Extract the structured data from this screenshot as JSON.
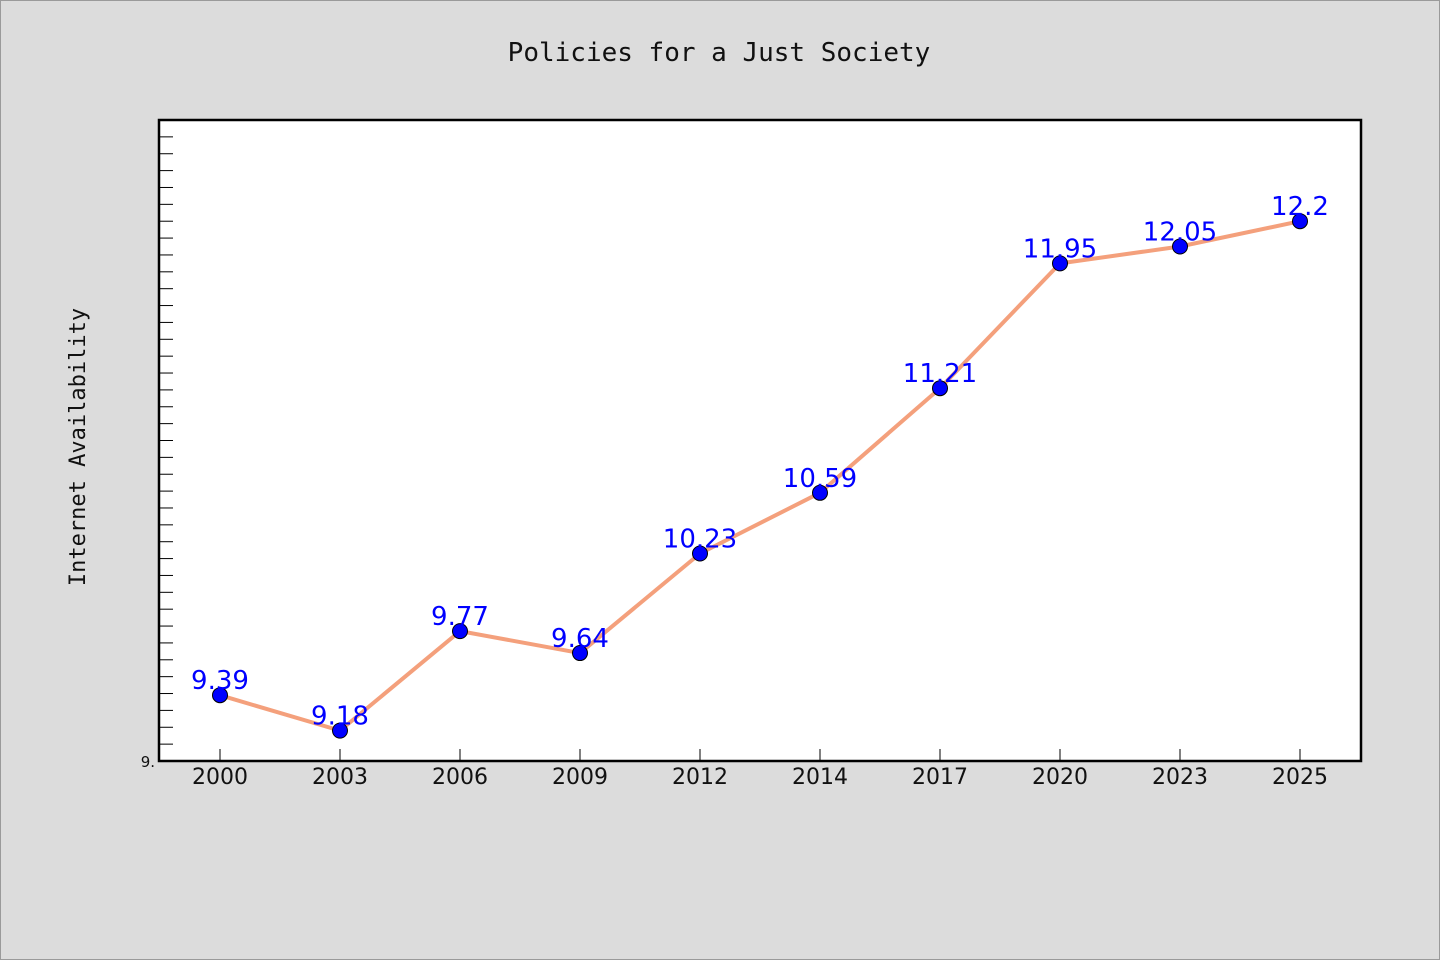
{
  "chart_data": {
    "type": "line",
    "title": "Policies for a Just Society",
    "xlabel": "",
    "ylabel": "Internet Availability",
    "categories": [
      "2000",
      "2003",
      "2006",
      "2009",
      "2012",
      "2014",
      "2017",
      "2020",
      "2023",
      "2025"
    ],
    "series": [
      {
        "values": [
          9.39,
          9.18,
          9.77,
          9.64,
          10.23,
          10.59,
          11.21,
          11.95,
          12.05,
          12.2
        ]
      }
    ],
    "data_labels": [
      "9.39",
      "9.18",
      "9.77",
      "9.64",
      "10.23",
      "10.59",
      "11.21",
      "11.95",
      "12.05",
      "12.2"
    ],
    "y_tick_labels": [
      "9."
    ],
    "ylim": [
      9.0,
      12.8
    ],
    "grid": false,
    "legend": false
  },
  "colors": {
    "background": "#dcdcdc",
    "plot_background": "#ffffff",
    "line": "#f4a07c",
    "marker": "#0000ff",
    "data_label": "#0000ff"
  }
}
